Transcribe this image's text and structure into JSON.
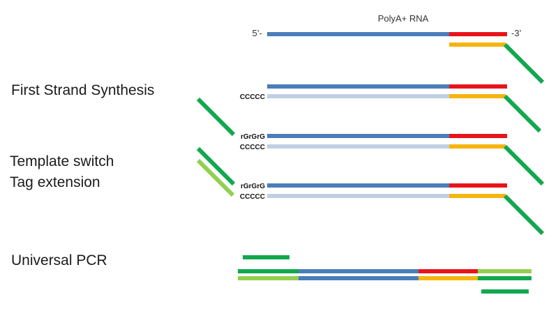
{
  "title": "PolyA+ RNA",
  "end_labels": {
    "five_prime": "5’-",
    "three_prime": "-3’"
  },
  "steps": [
    "First Strand Synthesis",
    "Template switch",
    "Tag extension",
    "Universal PCR"
  ],
  "sequences": {
    "cap": "rGrGrG",
    "c_tail": "CCCCC"
  },
  "colors": {
    "rna": "#4a7ebb",
    "cdna": "#c0d0e4",
    "polya": "#e8141a",
    "polyt": "#f5b50f",
    "primer": "#12a84e",
    "tso": "#92d050"
  }
}
